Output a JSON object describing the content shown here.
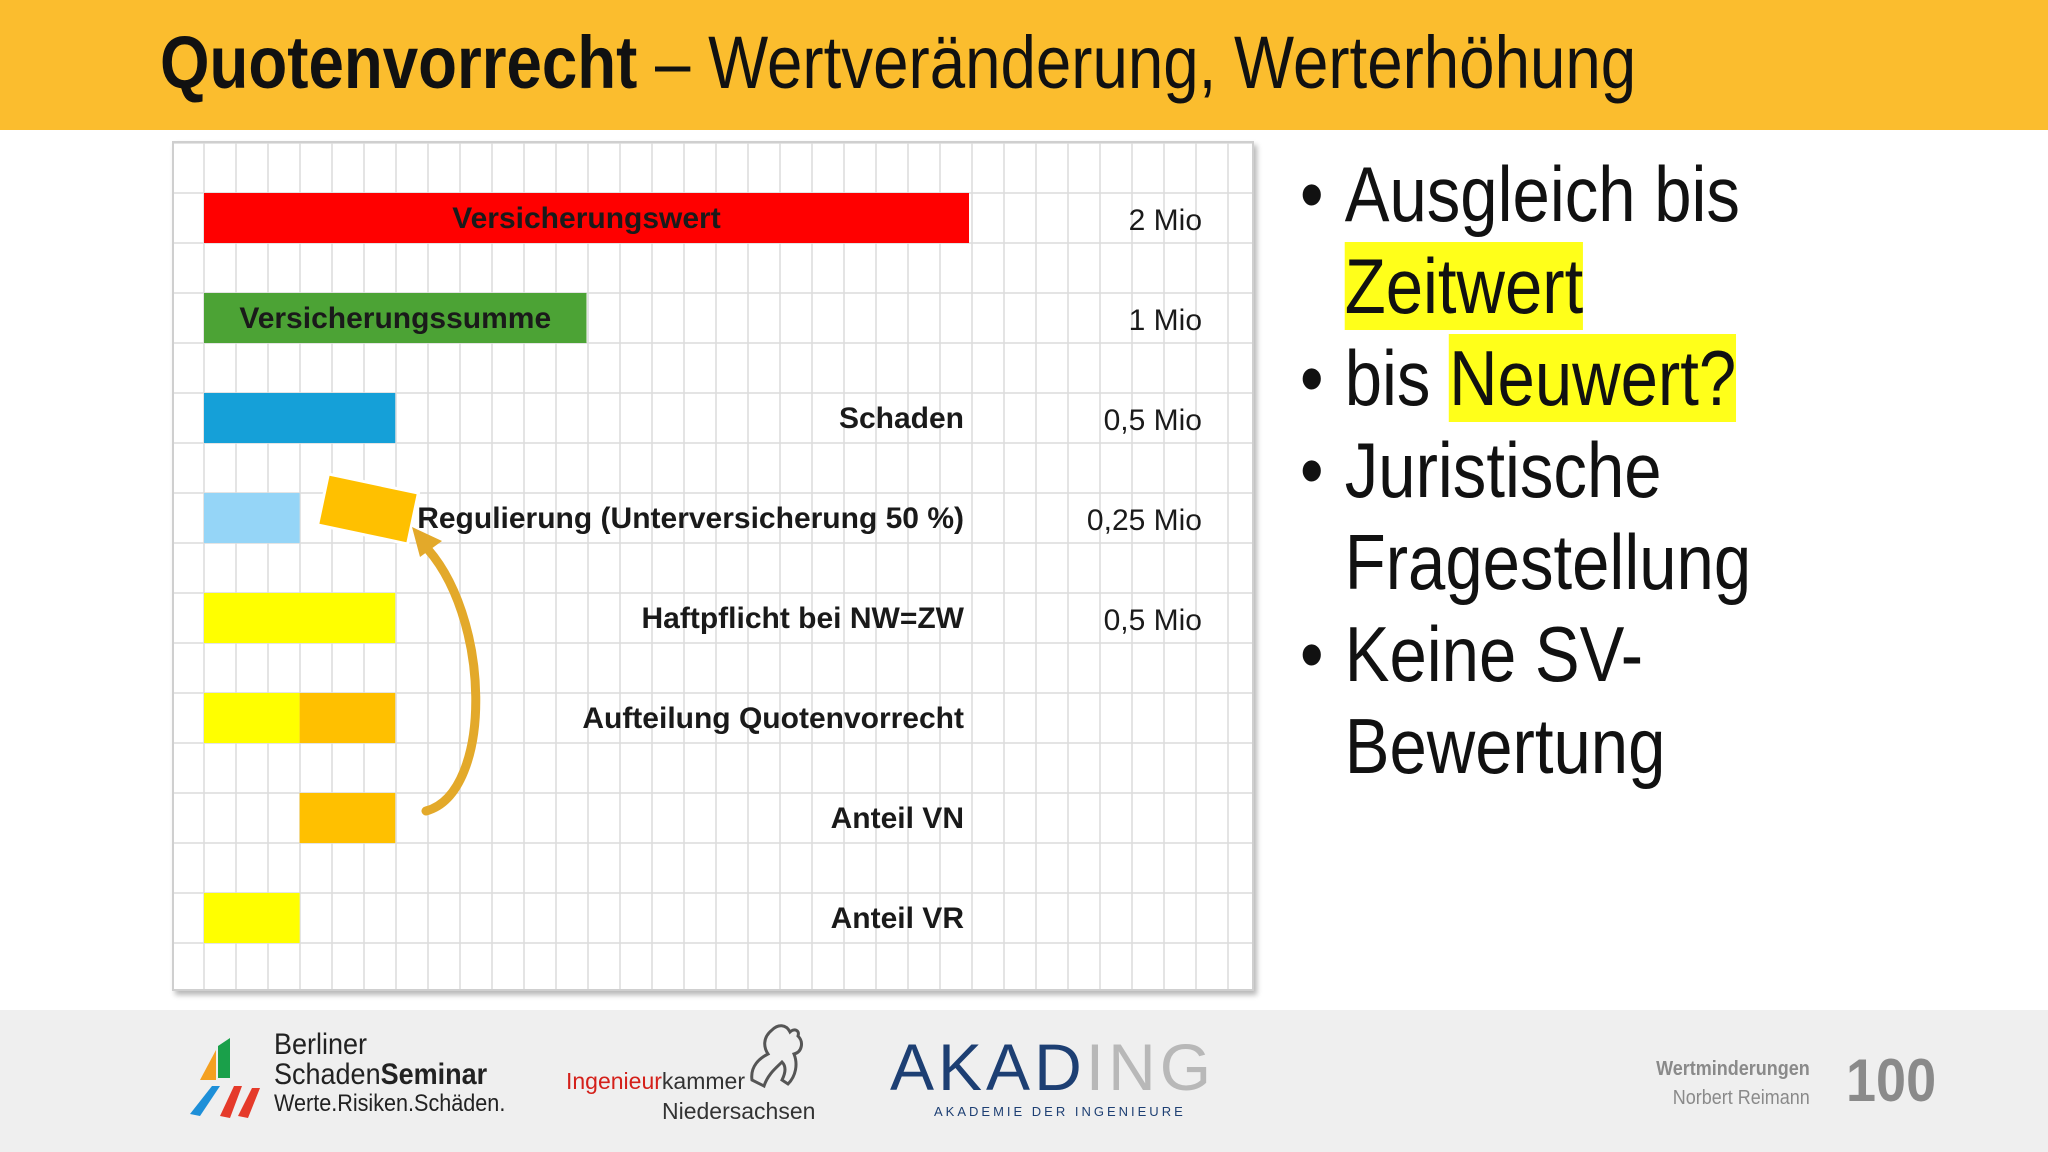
{
  "header": {
    "title_bold": "Quotenvorrecht",
    "title_rest": " – Wertveränderung, Werterhöhung",
    "bg_color": "#fbbd2e"
  },
  "chart_data": {
    "type": "bar",
    "unit": "Mio",
    "categories": [
      "Versicherungswert",
      "Versicherungssumme",
      "Schaden",
      "Regulierung (Unterversicherung 50 %)",
      "Haftpflicht bei NW=ZW",
      "Aufteilung Quotenvorrecht",
      "Anteil VN",
      "Anteil VR"
    ],
    "rows": [
      {
        "label": "Versicherungswert",
        "value_text": "2 Mio",
        "segments": [
          {
            "start": 0,
            "value": 2,
            "color": "#ff0000"
          }
        ],
        "label_inside": true
      },
      {
        "label": "Versicherungssumme",
        "value_text": "1 Mio",
        "segments": [
          {
            "start": 0,
            "value": 1,
            "color": "#4ca335"
          }
        ],
        "label_inside": true
      },
      {
        "label": "Schaden",
        "value_text": "0,5 Mio",
        "segments": [
          {
            "start": 0,
            "value": 0.5,
            "color": "#15a0d8"
          }
        ],
        "label_inside": false
      },
      {
        "label": "Regulierung (Unterversicherung 50 %)",
        "value_text": "0,25 Mio",
        "segments": [
          {
            "start": 0,
            "value": 0.25,
            "color": "#95d5f7"
          }
        ],
        "label_inside": false
      },
      {
        "label": "Haftpflicht bei NW=ZW",
        "value_text": "0,5 Mio",
        "segments": [
          {
            "start": 0,
            "value": 0.5,
            "color": "#ffff00"
          }
        ],
        "label_inside": false
      },
      {
        "label": "Aufteilung Quotenvorrecht",
        "value_text": "",
        "segments": [
          {
            "start": 0,
            "value": 0.25,
            "color": "#ffff00"
          },
          {
            "start": 0.25,
            "value": 0.25,
            "color": "#ffc000"
          }
        ],
        "label_inside": false
      },
      {
        "label": "Anteil VN",
        "value_text": "",
        "segments": [
          {
            "start": 0.25,
            "value": 0.25,
            "color": "#ffc000"
          }
        ],
        "label_inside": false
      },
      {
        "label": "Anteil VR",
        "value_text": "",
        "segments": [
          {
            "start": 0,
            "value": 0.25,
            "color": "#ffff00"
          }
        ],
        "label_inside": false
      }
    ],
    "xlim": [
      0,
      2
    ],
    "grid": true,
    "annotations": [
      "orange block rotated near Regulierung row",
      "curved arrow from Anteil VN up to Regulierung"
    ]
  },
  "bullets": [
    {
      "parts": [
        {
          "text": "Ausgleich bis ",
          "hl": false
        },
        {
          "text": "Zeitwert",
          "hl": true
        }
      ]
    },
    {
      "parts": [
        {
          "text": "bis ",
          "hl": false
        },
        {
          "text": "Neuwert?",
          "hl": true
        }
      ]
    },
    {
      "parts": [
        {
          "text": "Juristische Fragestellung",
          "hl": false
        }
      ]
    },
    {
      "parts": [
        {
          "text": "Keine SV-Bewertung",
          "hl": false
        }
      ]
    }
  ],
  "bullet_lines": [
    [
      "Ausgleich bis"
    ],
    [
      "Zeitwert"
    ],
    [
      "bis ",
      "Neuwert?"
    ],
    [
      "Juristische"
    ],
    [
      "Fragestellung"
    ],
    [
      "Keine SV-"
    ],
    [
      "Bewertung"
    ]
  ],
  "footer": {
    "bss_line1": "Berliner",
    "bss_line2a": "Schaden",
    "bss_line2b": "Seminar",
    "bss_line3": "Werte.Risiken.Schäden.",
    "ik_red": "Ingenieur",
    "ik_black": "kammer",
    "ik_line2": "Niedersachsen",
    "akading_a": "AKAD",
    "akading_b": "ING",
    "akademie": "AKADEMIE DER INGENIEURE",
    "meta_title": "Wertminderungen",
    "meta_author": "Norbert Reimann",
    "page_number": "100"
  },
  "colors": {
    "highlight": "#ffff1a",
    "grid": "#dcdcdc",
    "akading_blue": "#1d3f73",
    "meta_gray": "#8a8a8a"
  }
}
